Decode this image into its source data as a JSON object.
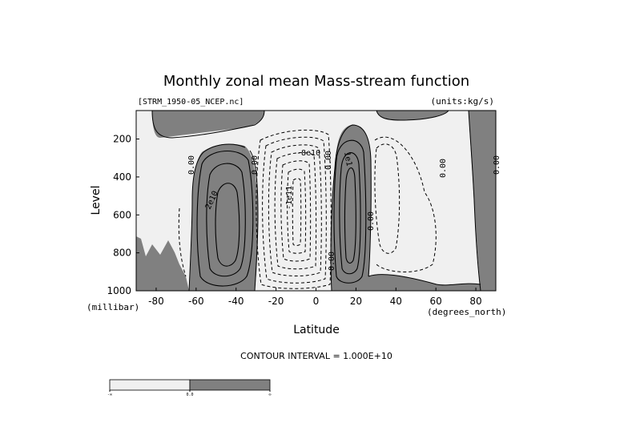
{
  "chart_data": {
    "type": "contour",
    "title": "Monthly zonal mean Mass-stream function",
    "file_label": "[STRM_1950-05_NCEP.nc]",
    "units_label": "(units:kg/s)",
    "xlabel": "Latitude",
    "x_units": "(degrees_north)",
    "ylabel": "Level",
    "y_units": "(millibar)",
    "xlim": [
      -90,
      90
    ],
    "ylim": [
      1000,
      50
    ],
    "x_ticks": [
      -80,
      -60,
      -40,
      -20,
      0,
      20,
      40,
      60,
      80
    ],
    "y_ticks": [
      200,
      400,
      600,
      800,
      1000
    ],
    "contour_interval_text": "CONTOUR INTERVAL = 1.000E+10",
    "contour_labels": [
      "0.00",
      "2e10",
      "0.00",
      "-1e11",
      "-8e10",
      "1e1",
      "0.00",
      "0.00",
      "0.00",
      "0.00",
      "0.00"
    ],
    "shading": {
      "colors": {
        "negative": "#f0f0f0",
        "positive": "#808080"
      },
      "colorbar_labels": [
        "-∞",
        "0.0",
        "∞"
      ]
    },
    "cells": [
      {
        "name": "southern-ferrel-cell",
        "lat_center": -45,
        "p_center": 600,
        "sign": "positive",
        "peak": 30000000000.0
      },
      {
        "name": "southern-hadley-cell",
        "lat_center": -5,
        "p_center": 500,
        "sign": "negative",
        "peak": -160000000000.0
      },
      {
        "name": "northern-hadley-cell",
        "lat_center": 17,
        "p_center": 550,
        "sign": "positive",
        "peak": 30000000000.0
      },
      {
        "name": "northern-ferrel-cell",
        "lat_center": 42,
        "p_center": 500,
        "sign": "negative",
        "peak": -20000000000.0
      }
    ]
  }
}
